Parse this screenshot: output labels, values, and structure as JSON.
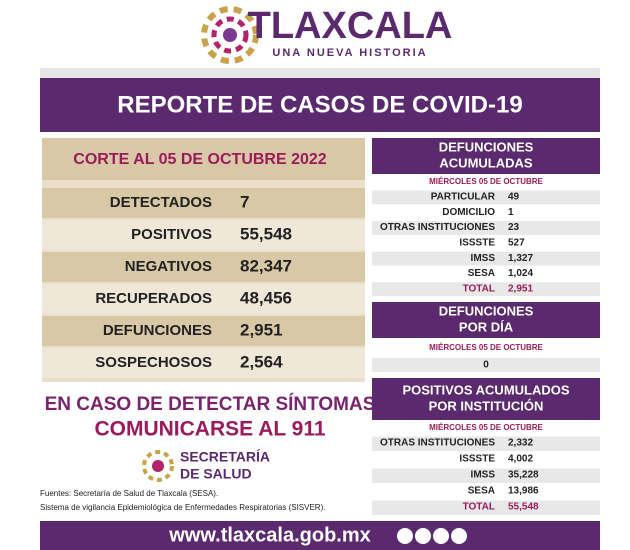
{
  "header": {
    "title": "TLAXCALA",
    "subtitle": "UNA NUEVA HISTORIA",
    "banner": "REPORTE DE CASOS DE COVID-19"
  },
  "summary": {
    "title": "CORTE AL 05 DE OCTUBRE 2022",
    "rows": [
      [
        "DETECTADOS",
        "7"
      ],
      [
        "POSITIVOS",
        "55,548"
      ],
      [
        "NEGATIVOS",
        "82,347"
      ],
      [
        "RECUPERADOS",
        "48,456"
      ],
      [
        "DEFUNCIONES",
        "2,951"
      ],
      [
        "SOSPECHOSOS",
        "2,564"
      ]
    ]
  },
  "deaths_total": {
    "title_1": "DEFUNCIONES",
    "title_2": "ACUMULADAS",
    "date": "MIÉRCOLES 05 DE OCTUBRE",
    "rows": [
      [
        "PARTICULAR",
        "49"
      ],
      [
        "DOMICILIO",
        "1"
      ],
      [
        "OTRAS INSTITUCIONES",
        "23"
      ],
      [
        "ISSSTE",
        "527"
      ],
      [
        "IMSS",
        "1,327"
      ],
      [
        "SESA",
        "1,024"
      ],
      [
        "TOTAL",
        "2,951"
      ]
    ]
  },
  "deaths_day": {
    "title_1": "DEFUNCIONES",
    "title_2": "POR DÍA",
    "date": "MIÉRCOLES 05 DE OCTUBRE",
    "value": "0"
  },
  "positives": {
    "title_1": "POSITIVOS ACUMULADOS",
    "title_2": "POR INSTITUCIÓN",
    "date": "MIÉRCOLES 05 DE OCTUBRE",
    "rows": [
      [
        "OTRAS INSTITUCIONES",
        "2,332"
      ],
      [
        "ISSSTE",
        "4,002"
      ],
      [
        "IMSS",
        "35,228"
      ],
      [
        "SESA",
        "13,986"
      ],
      [
        "TOTAL",
        "55,548"
      ]
    ]
  },
  "notice": {
    "line_1": "EN CASO DE DETECTAR SÍNTOMAS",
    "line_2": "COMUNICARSE AL 911"
  },
  "agency": {
    "line_1": "SECRETARÍA",
    "line_2": "DE SALUD"
  },
  "sources": {
    "line_1": "Fuentes:  Secretaría de Salud de Tlaxcala (SESA).",
    "line_2": "Sistema de vigilancia Epidemiológica de Enfermedades Respiratorias (SISVER)."
  },
  "footer": {
    "url": "www.tlaxcala.gob.mx"
  }
}
